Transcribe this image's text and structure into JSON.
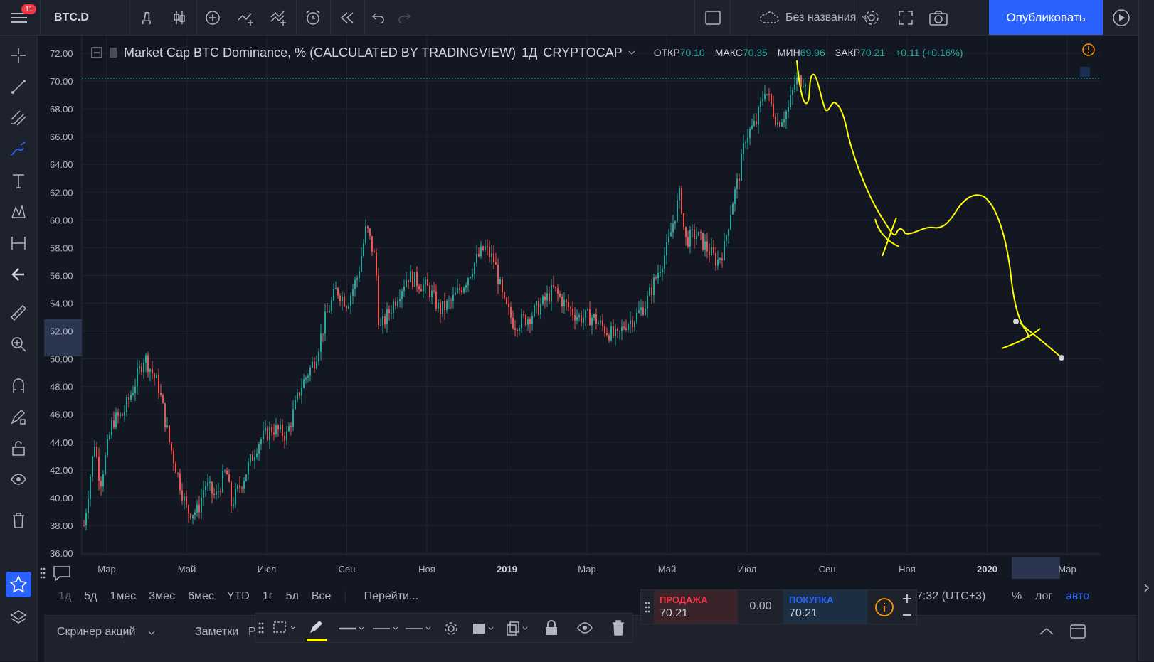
{
  "topbar": {
    "menu_badge": "11",
    "symbol": "BTC.D",
    "interval": "Д",
    "layout_name": "Без названия",
    "publish_label": "Опубликовать"
  },
  "legend": {
    "title": "Market Cap BTC Dominance, % (CALCULATED BY TRADINGVIEW)",
    "interval": "1Д",
    "exchange": "CRYPTOCAP",
    "open_label": "ОТКР",
    "open": "70.10",
    "high_label": "МАКС",
    "high": "70.35",
    "low_label": "МИН",
    "low": "69.96",
    "close_label": "ЗАКР",
    "close": "70.21",
    "change": "+0.11 (+0.16%)"
  },
  "chart_data": {
    "type": "candlestick",
    "y_ticks": [
      "72.00",
      "70.00",
      "68.00",
      "66.00",
      "64.00",
      "62.00",
      "60.00",
      "58.00",
      "56.00",
      "54.00",
      "52.00",
      "50.00",
      "48.00",
      "46.00",
      "44.00",
      "42.00",
      "40.00",
      "38.00",
      "36.00"
    ],
    "x_ticks": [
      "Мар",
      "Май",
      "Июл",
      "Сен",
      "Ноя",
      "2019",
      "Мар",
      "Май",
      "Июл",
      "Сен",
      "Ноя",
      "2020",
      "Мар"
    ],
    "ylim": [
      36,
      72.5
    ],
    "last_price": 70.21,
    "grid": true,
    "colors": {
      "up": "#26a69a",
      "down": "#ef5350",
      "drawing": "#ffff00",
      "background": "#131722"
    }
  },
  "range_bar": {
    "items": [
      "1д",
      "5д",
      "1мес",
      "3мес",
      "6мес",
      "YTD",
      "1г",
      "5л",
      "Все"
    ],
    "goto": "Перейти...",
    "time": "7:32 (UTC+3)",
    "percent": "%",
    "log": "лог",
    "auto": "авто"
  },
  "trade": {
    "sell_label": "ПРОДАЖА",
    "sell_price": "70.21",
    "spread": "0.00",
    "buy_label": "ПОКУПКА",
    "buy_price": "70.21"
  },
  "bottom_tabs": {
    "screener": "Скринер акций",
    "notes": "Заметки",
    "cut": "Р"
  }
}
